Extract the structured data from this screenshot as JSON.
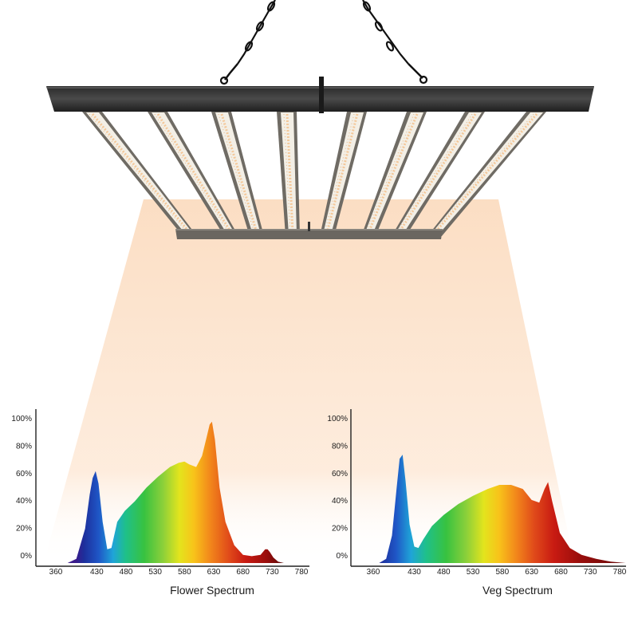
{
  "colors": {
    "beam": "#fbe1c7",
    "fixture_bar": "#3a3a3a",
    "led_strip": "#f3efe6",
    "axis": "#222222",
    "text": "#1a1a1a"
  },
  "chart_data": [
    {
      "type": "area",
      "title": "Flower Spectrum",
      "xlabel": "",
      "ylabel": "",
      "xlim": [
        330,
        790
      ],
      "ylim": [
        0,
        100
      ],
      "y_ticks": [
        "0%",
        "20%",
        "40%",
        "60%",
        "80%",
        "100%"
      ],
      "x_ticks": [
        "360",
        "430",
        "480",
        "530",
        "580",
        "630",
        "680",
        "730",
        "780"
      ],
      "x_tick_values": [
        360,
        430,
        480,
        530,
        580,
        630,
        680,
        730,
        780
      ],
      "fill": "visible-spectrum gradient",
      "x": [
        380,
        395,
        410,
        418,
        423,
        428,
        433,
        440,
        448,
        455,
        465,
        478,
        495,
        515,
        535,
        555,
        570,
        580,
        588,
        600,
        610,
        618,
        623,
        627,
        632,
        640,
        650,
        665,
        680,
        695,
        710,
        718,
        722,
        726,
        732,
        740,
        750
      ],
      "values": [
        0,
        3,
        25,
        50,
        62,
        67,
        58,
        30,
        10,
        11,
        30,
        38,
        45,
        55,
        63,
        70,
        73,
        74,
        72,
        70,
        78,
        92,
        101,
        103,
        90,
        55,
        30,
        13,
        6,
        5,
        6,
        10,
        10,
        8,
        4,
        1,
        0
      ]
    },
    {
      "type": "area",
      "title": "Veg Spectrum",
      "xlabel": "",
      "ylabel": "",
      "xlim": [
        330,
        790
      ],
      "ylim": [
        0,
        100
      ],
      "y_ticks": [
        "0%",
        "20%",
        "40%",
        "60%",
        "80%",
        "100%"
      ],
      "x_ticks": [
        "360",
        "430",
        "480",
        "530",
        "580",
        "630",
        "680",
        "730",
        "780"
      ],
      "x_tick_values": [
        360,
        430,
        480,
        530,
        580,
        630,
        680,
        730,
        780
      ],
      "fill": "visible-spectrum gradient",
      "x": [
        370,
        382,
        392,
        400,
        405,
        410,
        415,
        422,
        430,
        437,
        445,
        460,
        480,
        505,
        530,
        555,
        575,
        595,
        615,
        630,
        643,
        652,
        658,
        665,
        678,
        695,
        715,
        740,
        765,
        790
      ],
      "values": [
        0,
        3,
        20,
        55,
        76,
        79,
        60,
        28,
        12,
        11,
        17,
        27,
        35,
        43,
        49,
        54,
        57,
        57,
        54,
        46,
        44,
        54,
        59,
        45,
        22,
        11,
        6,
        3,
        1,
        0
      ]
    }
  ]
}
